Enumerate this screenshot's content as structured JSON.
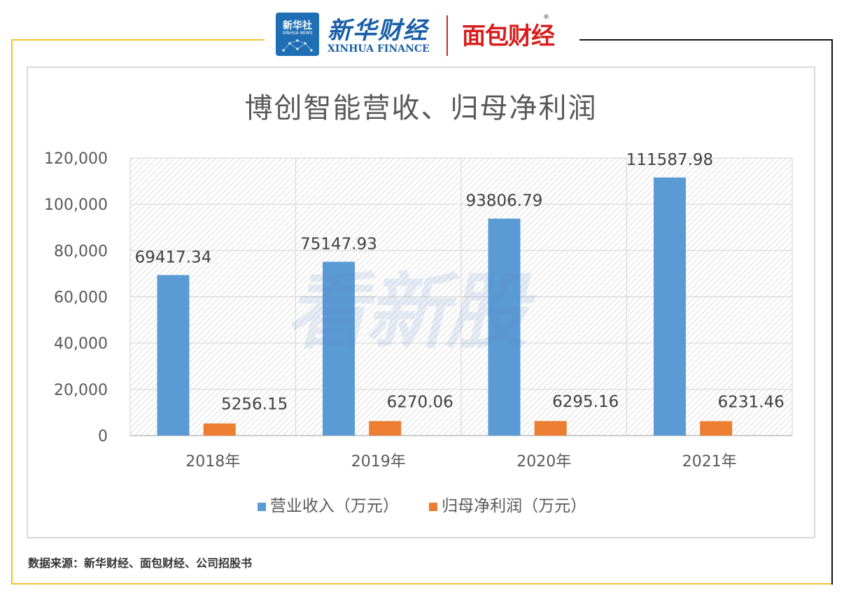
{
  "header": {
    "xinhua_she": "新华社",
    "xinhua_news": "XINHUA NEWS",
    "finance_cn": "新华财经",
    "finance_en": "XINHUA FINANCE",
    "mianbao": "面包财经",
    "registered": "®"
  },
  "watermark": "看新股",
  "source": "数据来源：新华财经、面包财经、公司招股书",
  "colors": {
    "revenue": "#5b9bd5",
    "profit": "#ed7d31",
    "frame_accent": "#f2c230"
  },
  "chart_data": {
    "type": "bar",
    "title": "博创智能营收、归母净利润",
    "categories": [
      "2018年",
      "2019年",
      "2020年",
      "2021年"
    ],
    "series": [
      {
        "name": "营业收入（万元）",
        "values": [
          69417.34,
          75147.93,
          93806.79,
          111587.98
        ],
        "labels": [
          "69417.34",
          "75147.93",
          "93806.79",
          "111587.98"
        ]
      },
      {
        "name": "归母净利润（万元）",
        "values": [
          5256.15,
          6270.06,
          6295.16,
          6231.46
        ],
        "labels": [
          "5256.15",
          "6270.06",
          "6295.16",
          "6231.46"
        ]
      }
    ],
    "ylim": [
      0,
      120000
    ],
    "yticks": [
      "0",
      "20,000",
      "40,000",
      "60,000",
      "80,000",
      "100,000",
      "120,000"
    ],
    "grid": true,
    "legend": "bottom"
  }
}
